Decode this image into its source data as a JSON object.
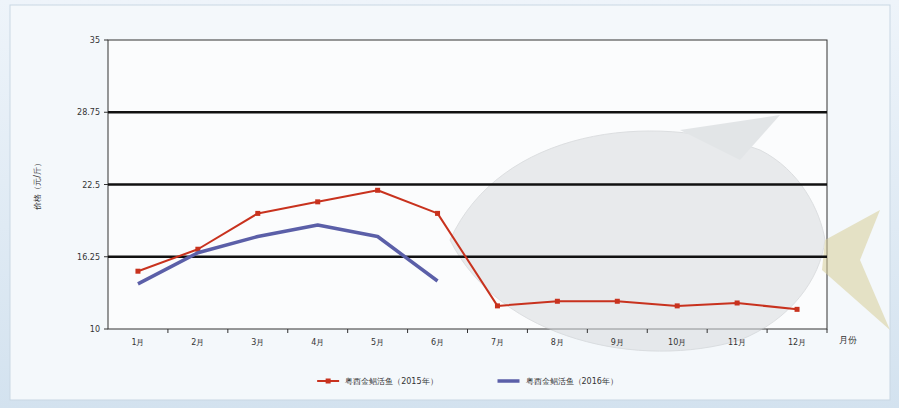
{
  "chart_data": {
    "type": "line",
    "y_label": "价格（元/斤）",
    "x_label": "月份",
    "categories": [
      "1月",
      "2月",
      "3月",
      "4月",
      "5月",
      "6月",
      "7月",
      "8月",
      "9月",
      "10月",
      "11月",
      "12月"
    ],
    "series": [
      {
        "name": "粤西金鲳活鱼（2015年）",
        "color": "#c8321e",
        "marker": "square",
        "line_style": "solid",
        "values": [
          15.0,
          16.9,
          20.0,
          21.0,
          22.0,
          20.0,
          12.0,
          12.4,
          12.4,
          12.0,
          12.25,
          11.7
        ]
      },
      {
        "name": "粤西金鲳活鱼（2016年）",
        "color": "#5b5fa8",
        "marker": "none",
        "line_style": "solid",
        "values": [
          13.9,
          16.6,
          18.0,
          19.0,
          18.0,
          14.15,
          null,
          null,
          null,
          null,
          null,
          null
        ]
      }
    ],
    "ylim": [
      10,
      35
    ],
    "yticks": [
      10,
      16.25,
      22.5,
      28.75,
      35
    ],
    "grid": true,
    "legend": "bottom"
  }
}
